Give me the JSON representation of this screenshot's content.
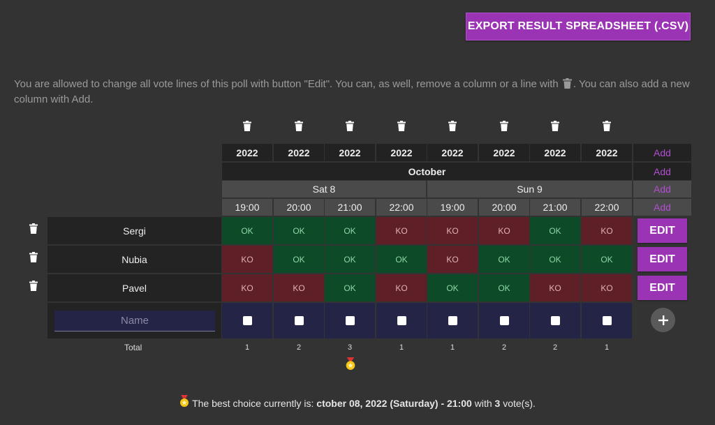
{
  "header": {
    "export_label": "EXPORT RESULT SPREADSHEET (.CSV)"
  },
  "info": {
    "text_before_icon": "You are allowed to change all vote lines of this poll with button \"Edit\". You can, as well, remove a column or a line with",
    "text_after_icon": ". You can also add a new column with Add."
  },
  "table": {
    "years": [
      "2022",
      "2022",
      "2022",
      "2022",
      "2022",
      "2022",
      "2022",
      "2022"
    ],
    "month": "October",
    "days": [
      "Sat 8",
      "Sun 9"
    ],
    "hours": [
      "19:00",
      "20:00",
      "21:00",
      "22:00",
      "19:00",
      "20:00",
      "21:00",
      "22:00"
    ],
    "add_label": "Add",
    "rows": [
      {
        "name": "Sergi",
        "votes": [
          "OK",
          "OK",
          "OK",
          "KO",
          "KO",
          "KO",
          "OK",
          "KO"
        ]
      },
      {
        "name": "Nubia",
        "votes": [
          "KO",
          "OK",
          "OK",
          "OK",
          "KO",
          "OK",
          "OK",
          "OK"
        ]
      },
      {
        "name": "Pavel",
        "votes": [
          "KO",
          "KO",
          "OK",
          "KO",
          "OK",
          "OK",
          "KO",
          "KO"
        ]
      }
    ],
    "edit_label": "EDIT",
    "name_placeholder": "Name",
    "total_label": "Total",
    "totals": [
      "1",
      "2",
      "3",
      "1",
      "1",
      "2",
      "2",
      "1"
    ]
  },
  "best": {
    "prefix": "The best choice currently is:",
    "choice": "ctober 08, 2022 (Saturday) - 21:00",
    "middle": "with",
    "votes": "3",
    "suffix": "vote(s)."
  },
  "colors": {
    "accent": "#9b34b4",
    "ok": "#0d4a27",
    "ko": "#5f1f26",
    "new_row": "#242546"
  }
}
